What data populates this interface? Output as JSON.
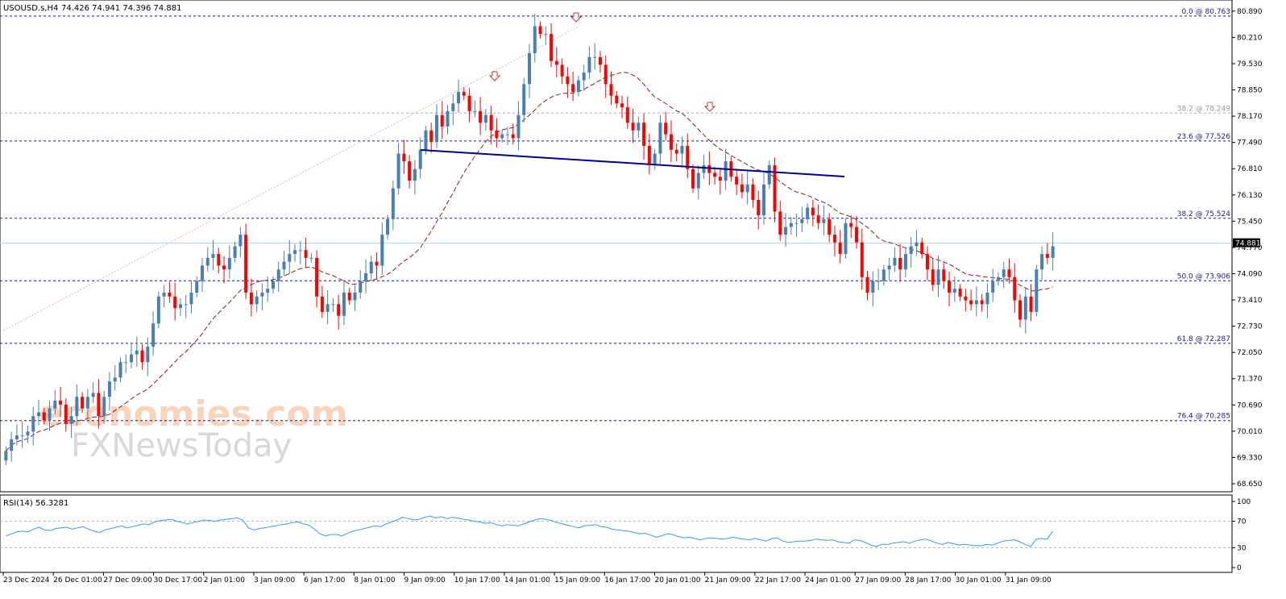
{
  "header": {
    "symbol": "USOUSD.s,H4",
    "ohlc": "74.426 74.941 74.396 74.881"
  },
  "watermark": {
    "line1": "economies.com",
    "line2": "FXNewsToday"
  },
  "colors": {
    "bull": "#4a7fb5",
    "bear": "#ff0000",
    "ma": "#8b1a1a",
    "trend": "#00008b",
    "fib": "#1a1a8c",
    "rsi": "#3399ff",
    "price_line": "#a8d8ea"
  },
  "chart_data": {
    "type": "candlestick",
    "title": "USOUSD.s,H4",
    "ylim": [
      68.65,
      80.97
    ],
    "y_ticks": [
      "80.890",
      "80.210",
      "79.530",
      "78.850",
      "78.170",
      "77.490",
      "76.810",
      "76.130",
      "75.450",
      "74.770",
      "74.090",
      "73.410",
      "72.730",
      "72.050",
      "71.370",
      "70.690",
      "70.010",
      "69.330",
      "68.650"
    ],
    "x_labels": [
      "23 Dec 2024",
      "26 Dec 01:00",
      "27 Dec 09:00",
      "30 Dec 17:00",
      "2 Jan 01:00",
      "3 Jan 09:00",
      "6 Jan 17:00",
      "8 Jan 01:00",
      "9 Jan 09:00",
      "10 Jan 17:00",
      "14 Jan 01:00",
      "15 Jan 09:00",
      "16 Jan 17:00",
      "20 Jan 01:00",
      "21 Jan 09:00",
      "22 Jan 17:00",
      "24 Jan 01:00",
      "27 Jan 09:00",
      "28 Jan 17:00",
      "30 Jan 01:00",
      "31 Jan 09:00"
    ],
    "current_price": "74.881",
    "current_value": 74.881,
    "fib_levels": [
      {
        "label": "0.0 @ 80.763",
        "value": 80.763,
        "style": "major"
      },
      {
        "label": "38.2 @ 78.249",
        "value": 78.249,
        "style": "minor"
      },
      {
        "label": "23.6 @ 77.526",
        "value": 77.526,
        "style": "major"
      },
      {
        "label": "38.2 @ 75.524",
        "value": 75.524,
        "style": "major"
      },
      {
        "label": "50.0 @ 73.906",
        "value": 73.906,
        "style": "major"
      },
      {
        "label": "61.8 @ 72.287",
        "value": 72.287,
        "style": "major"
      },
      {
        "label": "76.4 @ 70.285",
        "value": 70.285,
        "style": "major"
      }
    ],
    "closes": [
      69.5,
      69.8,
      69.9,
      69.9,
      70.0,
      70.4,
      70.5,
      70.3,
      70.6,
      70.8,
      70.7,
      70.2,
      70.4,
      70.9,
      70.6,
      70.9,
      71.0,
      70.4,
      70.9,
      71.3,
      71.4,
      71.8,
      71.8,
      72.0,
      72.1,
      71.8,
      72.2,
      72.8,
      73.5,
      73.6,
      73.5,
      73.2,
      73.3,
      73.3,
      73.6,
      73.9,
      74.3,
      74.5,
      74.6,
      74.3,
      74.2,
      74.5,
      74.8,
      75.1,
      73.6,
      73.3,
      73.5,
      73.6,
      73.7,
      73.9,
      74.2,
      74.4,
      74.6,
      74.7,
      74.7,
      74.5,
      74.5,
      73.5,
      73.1,
      73.3,
      73.3,
      73.0,
      73.6,
      73.4,
      73.6,
      73.9,
      74.1,
      74.4,
      74.3,
      75.1,
      75.5,
      76.3,
      77.2,
      77.0,
      76.5,
      76.8,
      77.3,
      77.8,
      77.5,
      78.2,
      77.9,
      78.3,
      78.5,
      78.8,
      78.7,
      78.3,
      78.3,
      78.0,
      78.2,
      77.8,
      77.6,
      77.7,
      77.7,
      77.6,
      78.2,
      79.0,
      79.8,
      80.5,
      80.3,
      80.3,
      79.6,
      79.5,
      79.2,
      79.0,
      78.8,
      79.1,
      79.3,
      79.7,
      79.7,
      79.5,
      79.0,
      78.7,
      78.5,
      78.4,
      78.0,
      77.8,
      78.0,
      77.4,
      76.9,
      77.2,
      78.0,
      77.7,
      77.3,
      77.2,
      77.4,
      76.8,
      76.3,
      76.7,
      76.9,
      76.7,
      76.6,
      76.5,
      77.0,
      76.6,
      76.4,
      76.2,
      76.4,
      76.0,
      75.6,
      76.4,
      76.9,
      75.7,
      75.1,
      75.3,
      75.4,
      75.4,
      75.5,
      75.8,
      75.6,
      75.4,
      75.5,
      75.1,
      74.9,
      74.6,
      75.4,
      75.3,
      74.9,
      74.0,
      73.6,
      73.9,
      73.9,
      74.2,
      74.3,
      74.5,
      74.2,
      74.6,
      74.8,
      74.9,
      74.6,
      74.2,
      73.8,
      74.2,
      73.9,
      73.6,
      73.7,
      73.5,
      73.4,
      73.3,
      73.4,
      73.3,
      73.6,
      73.9,
      74.0,
      74.2,
      74.0,
      73.4,
      72.9,
      73.5,
      73.1,
      74.2,
      74.6,
      74.5,
      74.8
    ]
  },
  "rsi": {
    "label": "RSI(14) 56.3281",
    "ticks": [
      "100",
      "70",
      "30",
      "0"
    ],
    "ylim": [
      0,
      100
    ],
    "values": [
      48,
      51,
      54,
      55,
      54,
      58,
      61,
      57,
      56,
      59,
      60,
      61,
      58,
      60,
      62,
      58,
      55,
      53,
      57,
      59,
      61,
      63,
      60,
      62,
      64,
      66,
      65,
      69,
      71,
      72,
      73,
      70,
      68,
      66,
      68,
      70,
      72,
      71,
      70,
      72,
      73,
      74,
      75,
      72,
      60,
      57,
      59,
      60,
      62,
      63,
      65,
      66,
      68,
      69,
      66,
      64,
      58,
      51,
      48,
      50,
      50,
      48,
      52,
      55,
      57,
      59,
      61,
      63,
      62,
      66,
      69,
      72,
      76,
      74,
      72,
      73,
      76,
      78,
      75,
      77,
      74,
      76,
      75,
      73,
      72,
      70,
      69,
      67,
      68,
      65,
      63,
      65,
      64,
      63,
      66,
      69,
      72,
      74,
      73,
      71,
      68,
      66,
      64,
      62,
      60,
      63,
      64,
      65,
      62,
      61,
      58,
      57,
      56,
      55,
      53,
      51,
      52,
      49,
      46,
      48,
      51,
      50,
      47,
      45,
      46,
      44,
      42,
      44,
      45,
      44,
      43,
      44,
      46,
      44,
      43,
      42,
      44,
      42,
      40,
      44,
      45,
      40,
      38,
      39,
      40,
      40,
      41,
      43,
      42,
      41,
      42,
      39,
      38,
      37,
      42,
      41,
      38,
      34,
      32,
      35,
      35,
      37,
      38,
      39,
      37,
      40,
      42,
      43,
      40,
      37,
      35,
      38,
      36,
      34,
      35,
      34,
      33,
      33,
      35,
      34,
      37,
      40,
      41,
      42,
      39,
      35,
      32,
      43,
      44,
      43,
      55
    ]
  },
  "annotations": [
    "arrow-down",
    "arrow-down",
    "arrow-down"
  ]
}
